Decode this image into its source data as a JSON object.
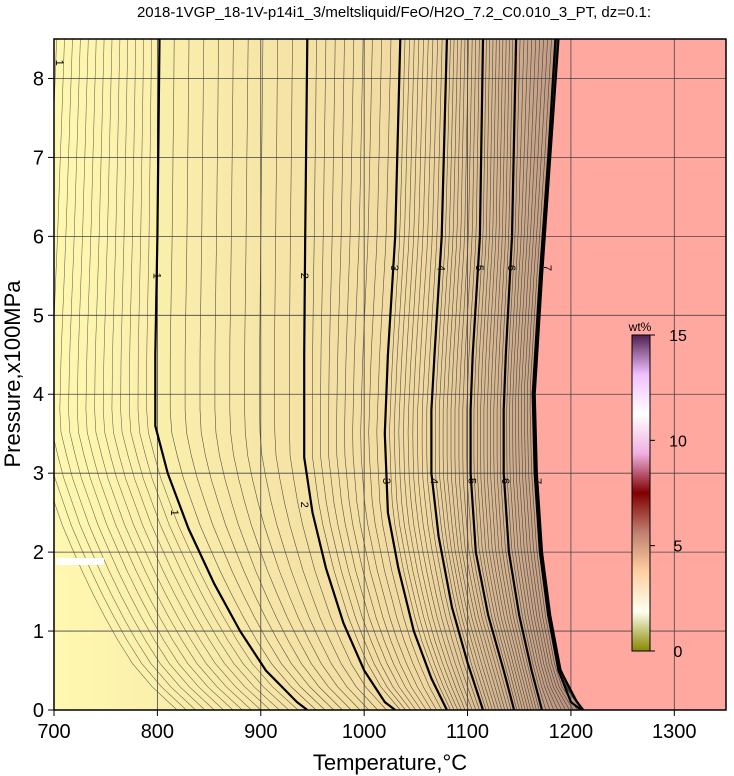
{
  "chart_data": {
    "type": "contour",
    "title": "2018-1VGP_18-1V-p14i1_3/meltsliquid/FeO/H2O_7.2_C0.010_3_PT, dz=0.1:",
    "xlabel": "Temperature,°C",
    "ylabel": "Pressure,x100MPa",
    "xlim": [
      700,
      1350
    ],
    "ylim": [
      0,
      8.5
    ],
    "xticks": [
      700,
      800,
      900,
      1000,
      1100,
      1200,
      1300
    ],
    "yticks": [
      0,
      1,
      2,
      3,
      4,
      5,
      6,
      7,
      8
    ],
    "grid": true,
    "contour_interval": 0.1,
    "labeled_contours": [
      {
        "label": "1",
        "points": [
          [
            802,
            8.5
          ],
          [
            800,
            6.0
          ],
          [
            798,
            4.5
          ],
          [
            798,
            3.6
          ],
          [
            810,
            3.0
          ],
          [
            830,
            2.3
          ],
          [
            855,
            1.6
          ],
          [
            880,
            1.0
          ],
          [
            905,
            0.5
          ],
          [
            935,
            0.1
          ],
          [
            945,
            0
          ]
        ]
      },
      {
        "label": "2",
        "points": [
          [
            945,
            8.5
          ],
          [
            943,
            6.0
          ],
          [
            942,
            4.5
          ],
          [
            942,
            3.2
          ],
          [
            950,
            2.5
          ],
          [
            963,
            1.8
          ],
          [
            980,
            1.1
          ],
          [
            1000,
            0.5
          ],
          [
            1020,
            0.1
          ],
          [
            1030,
            0
          ]
        ]
      },
      {
        "label": "3",
        "points": [
          [
            1035,
            8.5
          ],
          [
            1030,
            6.0
          ],
          [
            1023,
            4.5
          ],
          [
            1020,
            3.5
          ],
          [
            1023,
            2.5
          ],
          [
            1033,
            1.8
          ],
          [
            1048,
            1.0
          ],
          [
            1065,
            0.4
          ],
          [
            1080,
            0
          ]
        ]
      },
      {
        "label": "4",
        "points": [
          [
            1080,
            8.5
          ],
          [
            1075,
            6.0
          ],
          [
            1068,
            4.5
          ],
          [
            1065,
            3.8
          ],
          [
            1065,
            3.0
          ],
          [
            1072,
            2.2
          ],
          [
            1085,
            1.3
          ],
          [
            1100,
            0.6
          ],
          [
            1115,
            0
          ]
        ]
      },
      {
        "label": "5",
        "points": [
          [
            1115,
            8.5
          ],
          [
            1112,
            6.0
          ],
          [
            1105,
            4.5
          ],
          [
            1103,
            3.8
          ],
          [
            1103,
            3.0
          ],
          [
            1108,
            2.0
          ],
          [
            1120,
            1.2
          ],
          [
            1135,
            0.5
          ],
          [
            1145,
            0
          ]
        ]
      },
      {
        "label": "6",
        "points": [
          [
            1147,
            8.5
          ],
          [
            1143,
            6.0
          ],
          [
            1137,
            4.5
          ],
          [
            1135,
            3.8
          ],
          [
            1135,
            3.0
          ],
          [
            1140,
            2.0
          ],
          [
            1150,
            1.2
          ],
          [
            1162,
            0.5
          ],
          [
            1172,
            0
          ]
        ]
      },
      {
        "label": "7",
        "points": [
          [
            1185,
            8.5
          ],
          [
            1178,
            7.0
          ],
          [
            1170,
            5.5
          ],
          [
            1163,
            4.0
          ],
          [
            1165,
            3.0
          ],
          [
            1170,
            2.0
          ],
          [
            1178,
            1.2
          ],
          [
            1188,
            0.5
          ],
          [
            1200,
            0.1
          ],
          [
            1210,
            0
          ]
        ]
      }
    ],
    "label_positions": [
      {
        "label": "1",
        "at": [
          800,
          5.5
        ]
      },
      {
        "label": "1",
        "at": [
          817,
          2.5
        ]
      },
      {
        "label": "1",
        "at": [
          706,
          8.2
        ]
      },
      {
        "label": "1",
        "at": [
          708,
          8.6
        ]
      },
      {
        "label": "2",
        "at": [
          943,
          5.5
        ]
      },
      {
        "label": "2",
        "at": [
          943,
          2.6
        ]
      },
      {
        "label": "3",
        "at": [
          1030,
          5.6
        ]
      },
      {
        "label": "3",
        "at": [
          1022,
          2.9
        ]
      },
      {
        "label": "4",
        "at": [
          1075,
          5.6
        ]
      },
      {
        "label": "4",
        "at": [
          1068,
          2.9
        ]
      },
      {
        "label": "5",
        "at": [
          1112,
          5.6
        ]
      },
      {
        "label": "5",
        "at": [
          1105,
          2.9
        ]
      },
      {
        "label": "6",
        "at": [
          1143,
          5.6
        ]
      },
      {
        "label": "6",
        "at": [
          1137,
          2.9
        ]
      },
      {
        "label": "7",
        "at": [
          1178,
          5.6
        ]
      },
      {
        "label": "7",
        "at": [
          1168,
          2.9
        ]
      }
    ],
    "region_no_melt": {
      "description": "",
      "boundary": [
        [
          1188,
          8.5
        ],
        [
          1180,
          7.0
        ],
        [
          1172,
          5.5
        ],
        [
          1165,
          4.0
        ],
        [
          1167,
          3.0
        ],
        [
          1172,
          2.0
        ],
        [
          1180,
          1.2
        ],
        [
          1190,
          0.5
        ],
        [
          1205,
          0.12
        ],
        [
          1212,
          0
        ]
      ]
    },
    "fill_colors": {
      "low": "#fff8b0",
      "mid": "#f0d8a0",
      "high": "#b89080",
      "outside": "#ffa8a0"
    },
    "colorbar": {
      "title": "wt%",
      "ticks": [
        0,
        5,
        10,
        15
      ],
      "range": [
        0,
        15
      ],
      "colors": [
        "#888800",
        "#fffff0",
        "#ffd0a0",
        "#c08070",
        "#800000",
        "#f0b0e0",
        "#ffffff",
        "#f0c0ff",
        "#502050"
      ]
    }
  }
}
